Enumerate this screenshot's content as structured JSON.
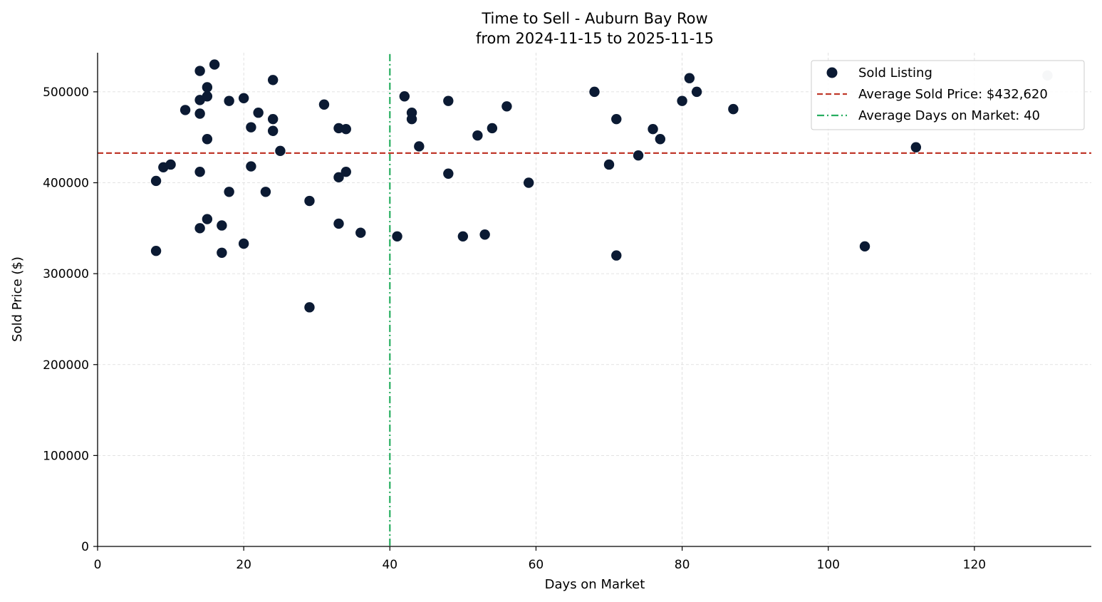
{
  "chart_data": {
    "type": "scatter",
    "title": "Time to Sell - Auburn Bay Row",
    "subtitle": "from 2024-11-15 to 2025-11-15",
    "xlabel": "Days on Market",
    "ylabel": "Sold Price ($)",
    "xlim": [
      0,
      136
    ],
    "ylim": [
      0,
      543000
    ],
    "xticks": [
      0,
      20,
      40,
      60,
      80,
      100,
      120
    ],
    "yticks": [
      0,
      100000,
      200000,
      300000,
      400000,
      500000
    ],
    "xtick_labels": [
      "0",
      "20",
      "40",
      "60",
      "80",
      "100",
      "120"
    ],
    "ytick_labels": [
      "0",
      "100000",
      "200000",
      "300000",
      "400000",
      "500000"
    ],
    "grid": true,
    "legend_position": "top-right",
    "series": [
      {
        "name": "Sold Listing",
        "color": "#0b1a33",
        "points": [
          [
            8,
            402000
          ],
          [
            8,
            325000
          ],
          [
            9,
            417000
          ],
          [
            10,
            420000
          ],
          [
            12,
            480000
          ],
          [
            14,
            523000
          ],
          [
            14,
            491000
          ],
          [
            14,
            476000
          ],
          [
            14,
            412000
          ],
          [
            14,
            350000
          ],
          [
            15,
            505000
          ],
          [
            15,
            495000
          ],
          [
            15,
            448000
          ],
          [
            15,
            360000
          ],
          [
            16,
            530000
          ],
          [
            17,
            353000
          ],
          [
            17,
            323000
          ],
          [
            18,
            490000
          ],
          [
            18,
            390000
          ],
          [
            20,
            493000
          ],
          [
            20,
            333000
          ],
          [
            21,
            461000
          ],
          [
            21,
            418000
          ],
          [
            22,
            477000
          ],
          [
            23,
            390000
          ],
          [
            24,
            513000
          ],
          [
            24,
            470000
          ],
          [
            24,
            457000
          ],
          [
            25,
            435000
          ],
          [
            29,
            380000
          ],
          [
            29,
            263000
          ],
          [
            31,
            486000
          ],
          [
            33,
            460000
          ],
          [
            33,
            406000
          ],
          [
            33,
            355000
          ],
          [
            34,
            459000
          ],
          [
            34,
            412000
          ],
          [
            36,
            345000
          ],
          [
            41,
            341000
          ],
          [
            42,
            495000
          ],
          [
            43,
            477000
          ],
          [
            43,
            470000
          ],
          [
            44,
            440000
          ],
          [
            48,
            490000
          ],
          [
            48,
            410000
          ],
          [
            50,
            341000
          ],
          [
            52,
            452000
          ],
          [
            53,
            343000
          ],
          [
            54,
            460000
          ],
          [
            56,
            484000
          ],
          [
            59,
            400000
          ],
          [
            68,
            500000
          ],
          [
            70,
            420000
          ],
          [
            71,
            470000
          ],
          [
            71,
            320000
          ],
          [
            74,
            430000
          ],
          [
            76,
            459000
          ],
          [
            77,
            448000
          ],
          [
            80,
            490000
          ],
          [
            81,
            515000
          ],
          [
            82,
            500000
          ],
          [
            87,
            481000
          ],
          [
            105,
            330000
          ],
          [
            112,
            439000
          ]
        ]
      },
      {
        "name": "Sold Listing (faded)",
        "color": "#c3c9d0",
        "points": [
          [
            130,
            518000
          ]
        ]
      }
    ],
    "reference_lines": {
      "avg_price": {
        "value": 432620,
        "color": "#c0392b",
        "label": "Average Sold Price: $432,620"
      },
      "avg_days": {
        "value": 40,
        "color": "#27ae60",
        "label": "Average Days on Market: 40"
      }
    },
    "legend": [
      {
        "label": "Sold Listing",
        "kind": "marker",
        "color": "#0b1a33"
      },
      {
        "label": "Average Sold Price: $432,620",
        "kind": "dashed",
        "color": "#c0392b"
      },
      {
        "label": "Average Days on Market: 40",
        "kind": "dashdot",
        "color": "#27ae60"
      }
    ]
  }
}
